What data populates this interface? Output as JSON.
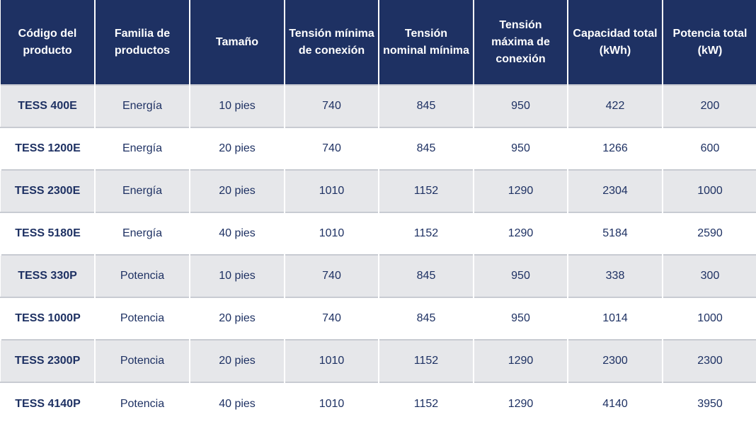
{
  "table": {
    "headers": [
      "Código del producto",
      "Familia de productos",
      "Tamaño",
      "Tensión mínima de conexión",
      "Tensión nominal mínima",
      "Tensión máxima de conexión",
      "Capacidad total (kWh)",
      "Potencia total (kW)"
    ],
    "rows": [
      [
        "TESS 400E",
        "Energía",
        "10 pies",
        "740",
        "845",
        "950",
        "422",
        "200"
      ],
      [
        "TESS 1200E",
        "Energía",
        "20 pies",
        "740",
        "845",
        "950",
        "1266",
        "600"
      ],
      [
        "TESS 2300E",
        "Energía",
        "20 pies",
        "1010",
        "1152",
        "1290",
        "2304",
        "1000"
      ],
      [
        "TESS 5180E",
        "Energía",
        "40 pies",
        "1010",
        "1152",
        "1290",
        "5184",
        "2590"
      ],
      [
        "TESS 330P",
        "Potencia",
        "10 pies",
        "740",
        "845",
        "950",
        "338",
        "300"
      ],
      [
        "TESS 1000P",
        "Potencia",
        "20 pies",
        "740",
        "845",
        "950",
        "1014",
        "1000"
      ],
      [
        "TESS 2300P",
        "Potencia",
        "20 pies",
        "1010",
        "1152",
        "1290",
        "2300",
        "2300"
      ],
      [
        "TESS 4140P",
        "Potencia",
        "40 pies",
        "1010",
        "1152",
        "1290",
        "4140",
        "3950"
      ]
    ]
  },
  "colors": {
    "header_bg": "#1e3163",
    "header_text": "#ffffff",
    "row_alt_bg": "#e6e7ea",
    "row_bg": "#ffffff",
    "body_text": "#1e3163"
  }
}
